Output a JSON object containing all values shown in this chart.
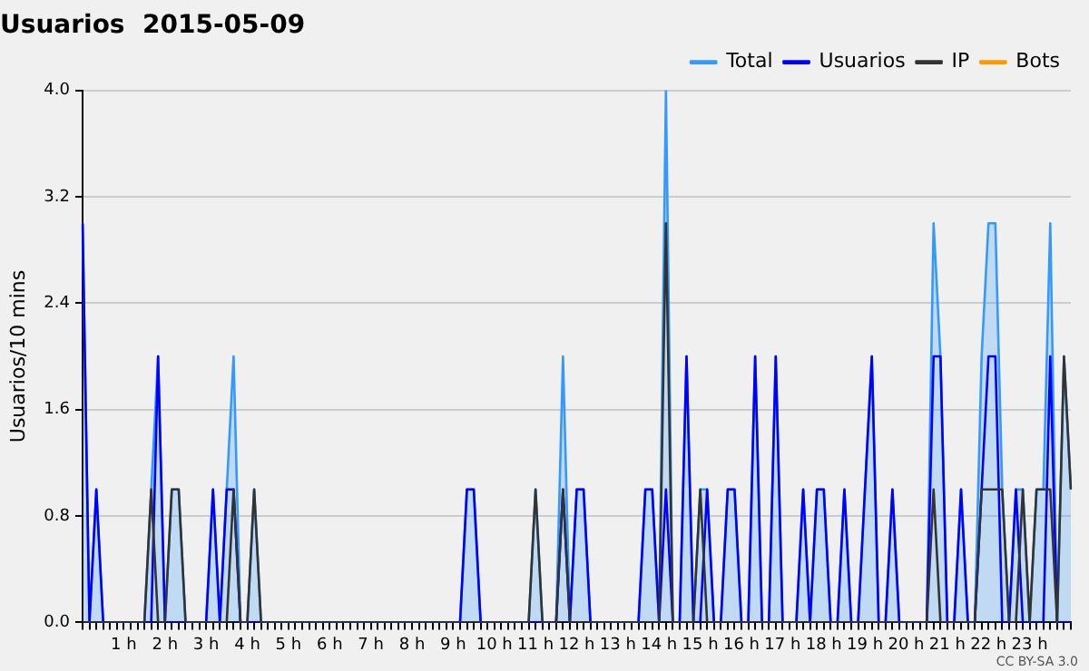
{
  "chart_data": {
    "type": "line",
    "title": "Usuarios  2015-05-09",
    "ylabel": "Usuarios/10 mins",
    "categories": [
      null,
      null,
      null,
      null,
      null,
      null,
      "1 h",
      null,
      null,
      null,
      null,
      null,
      "2 h",
      null,
      null,
      null,
      null,
      null,
      "3 h",
      null,
      null,
      null,
      null,
      null,
      "4 h",
      null,
      null,
      null,
      null,
      null,
      "5 h",
      null,
      null,
      null,
      null,
      null,
      "6 h",
      null,
      null,
      null,
      null,
      null,
      "7 h",
      null,
      null,
      null,
      null,
      null,
      "8 h",
      null,
      null,
      null,
      null,
      null,
      "9 h",
      null,
      null,
      null,
      null,
      null,
      "10 h",
      null,
      null,
      null,
      null,
      null,
      "11 h",
      null,
      null,
      null,
      null,
      null,
      "12 h",
      null,
      null,
      null,
      null,
      null,
      "13 h",
      null,
      null,
      null,
      null,
      null,
      "14 h",
      null,
      null,
      null,
      null,
      null,
      "15 h",
      null,
      null,
      null,
      null,
      null,
      "16 h",
      null,
      null,
      null,
      null,
      null,
      "17 h",
      null,
      null,
      null,
      null,
      null,
      "18 h",
      null,
      null,
      null,
      null,
      null,
      "19 h",
      null,
      null,
      null,
      null,
      null,
      "20 h",
      null,
      null,
      null,
      null,
      null,
      "21 h",
      null,
      null,
      null,
      null,
      null,
      "22 h",
      null,
      null,
      null,
      null,
      null,
      "23 h",
      null,
      null,
      null,
      null,
      null,
      null
    ],
    "series": [
      {
        "name": "Total",
        "type": "area",
        "color": "#3399ff",
        "values": [
          3,
          0,
          1,
          0,
          0,
          0,
          0,
          0,
          0,
          0,
          1,
          2,
          0,
          1,
          1,
          0,
          0,
          0,
          0,
          1,
          0,
          1,
          2,
          0,
          0,
          1,
          0,
          0,
          0,
          0,
          0,
          0,
          0,
          0,
          0,
          0,
          0,
          0,
          0,
          0,
          0,
          0,
          0,
          0,
          0,
          0,
          0,
          0,
          0,
          0,
          0,
          0,
          0,
          0,
          0,
          0,
          1,
          1,
          0,
          0,
          0,
          0,
          0,
          0,
          0,
          0,
          1,
          0,
          0,
          0,
          2,
          0,
          1,
          1,
          0,
          0,
          0,
          0,
          0,
          0,
          0,
          0,
          1,
          1,
          0,
          4,
          0,
          0,
          2,
          0,
          1,
          1,
          0,
          0,
          1,
          1,
          0,
          0,
          2,
          0,
          0,
          2,
          0,
          0,
          0,
          1,
          0,
          1,
          1,
          0,
          0,
          1,
          0,
          0,
          1,
          2,
          0,
          0,
          1,
          0,
          0,
          0,
          0,
          0,
          3,
          2,
          0,
          0,
          1,
          0,
          0,
          2,
          3,
          3,
          1,
          0,
          1,
          1,
          0,
          1,
          1,
          3,
          0,
          2,
          1
        ]
      },
      {
        "name": "Usuarios",
        "color": "#0000ff",
        "values": [
          3,
          0,
          1,
          0,
          0,
          0,
          0,
          0,
          0,
          0,
          0,
          2,
          0,
          0,
          0,
          0,
          0,
          0,
          0,
          1,
          0,
          1,
          1,
          0,
          0,
          0,
          0,
          0,
          0,
          0,
          0,
          0,
          0,
          0,
          0,
          0,
          0,
          0,
          0,
          0,
          0,
          0,
          0,
          0,
          0,
          0,
          0,
          0,
          0,
          0,
          0,
          0,
          0,
          0,
          0,
          0,
          1,
          1,
          0,
          0,
          0,
          0,
          0,
          0,
          0,
          0,
          0,
          0,
          0,
          0,
          1,
          0,
          1,
          1,
          0,
          0,
          0,
          0,
          0,
          0,
          0,
          0,
          1,
          1,
          0,
          1,
          0,
          0,
          2,
          0,
          0,
          1,
          0,
          0,
          1,
          1,
          0,
          0,
          2,
          0,
          0,
          2,
          0,
          0,
          0,
          1,
          0,
          1,
          1,
          0,
          0,
          1,
          0,
          0,
          1,
          2,
          0,
          0,
          1,
          0,
          0,
          0,
          0,
          0,
          2,
          2,
          0,
          0,
          1,
          0,
          0,
          1,
          2,
          2,
          0,
          0,
          1,
          0,
          0,
          0,
          0,
          2,
          0,
          0,
          0
        ]
      },
      {
        "name": "IP",
        "color": "#333333",
        "values": [
          0,
          0,
          0,
          0,
          0,
          0,
          0,
          0,
          0,
          0,
          1,
          0,
          0,
          1,
          1,
          0,
          0,
          0,
          0,
          0,
          0,
          0,
          1,
          0,
          0,
          1,
          0,
          0,
          0,
          0,
          0,
          0,
          0,
          0,
          0,
          0,
          0,
          0,
          0,
          0,
          0,
          0,
          0,
          0,
          0,
          0,
          0,
          0,
          0,
          0,
          0,
          0,
          0,
          0,
          0,
          0,
          0,
          0,
          0,
          0,
          0,
          0,
          0,
          0,
          0,
          0,
          1,
          0,
          0,
          0,
          1,
          0,
          0,
          0,
          0,
          0,
          0,
          0,
          0,
          0,
          0,
          0,
          0,
          0,
          0,
          3,
          0,
          0,
          0,
          0,
          1,
          0,
          0,
          0,
          0,
          0,
          0,
          0,
          0,
          0,
          0,
          0,
          0,
          0,
          0,
          0,
          0,
          0,
          0,
          0,
          0,
          0,
          0,
          0,
          0,
          0,
          0,
          0,
          0,
          0,
          0,
          0,
          0,
          0,
          1,
          0,
          0,
          0,
          0,
          0,
          0,
          1,
          1,
          1,
          1,
          0,
          0,
          1,
          0,
          1,
          1,
          1,
          0,
          2,
          1
        ]
      },
      {
        "name": "Bots",
        "color": "#ff9900",
        "values": [
          null,
          null,
          null,
          null,
          null,
          null,
          null,
          null,
          null,
          null,
          null,
          null,
          null,
          null,
          null,
          null,
          null,
          null,
          null,
          null,
          null,
          null,
          null,
          null,
          null,
          null,
          null,
          null,
          null,
          null,
          null,
          null,
          null,
          null,
          null,
          null,
          null,
          null,
          null,
          null,
          null,
          null,
          null,
          null,
          null,
          null,
          null,
          null,
          null,
          null,
          null,
          null,
          null,
          null,
          null,
          null,
          null,
          null,
          null,
          null,
          null,
          null,
          null,
          null,
          null,
          null,
          null,
          null,
          null,
          null,
          null,
          null,
          null,
          null,
          null,
          null,
          null,
          null,
          null,
          null,
          null,
          null,
          null,
          null,
          null,
          null,
          null,
          null,
          null,
          null,
          null,
          null,
          null,
          null,
          null,
          null,
          null,
          null,
          null,
          null,
          null,
          null,
          null,
          null,
          null,
          null,
          null,
          null,
          null,
          null,
          null,
          null,
          null,
          null,
          null,
          null,
          null,
          null,
          null,
          null,
          null,
          null,
          null,
          null,
          null,
          null,
          null,
          null,
          null,
          null,
          null,
          null,
          null,
          null,
          null,
          null,
          null,
          null,
          null,
          null,
          null,
          null,
          null,
          null,
          null
        ]
      }
    ],
    "ylim": [
      0,
      4
    ],
    "yticks": [
      {
        "value": 0,
        "label": "0.0"
      },
      {
        "value": 0.8,
        "label": "0.8"
      },
      {
        "value": 1.6,
        "label": "1.6"
      },
      {
        "value": 2.4,
        "label": "2.4"
      },
      {
        "value": 3.2,
        "label": "3.2"
      },
      {
        "value": 4,
        "label": "4.0"
      }
    ],
    "grid": "y",
    "legend": "top right",
    "marker": "none",
    "line_style": "solid",
    "annotations": [
      "CC BY-SA 3.0"
    ]
  }
}
